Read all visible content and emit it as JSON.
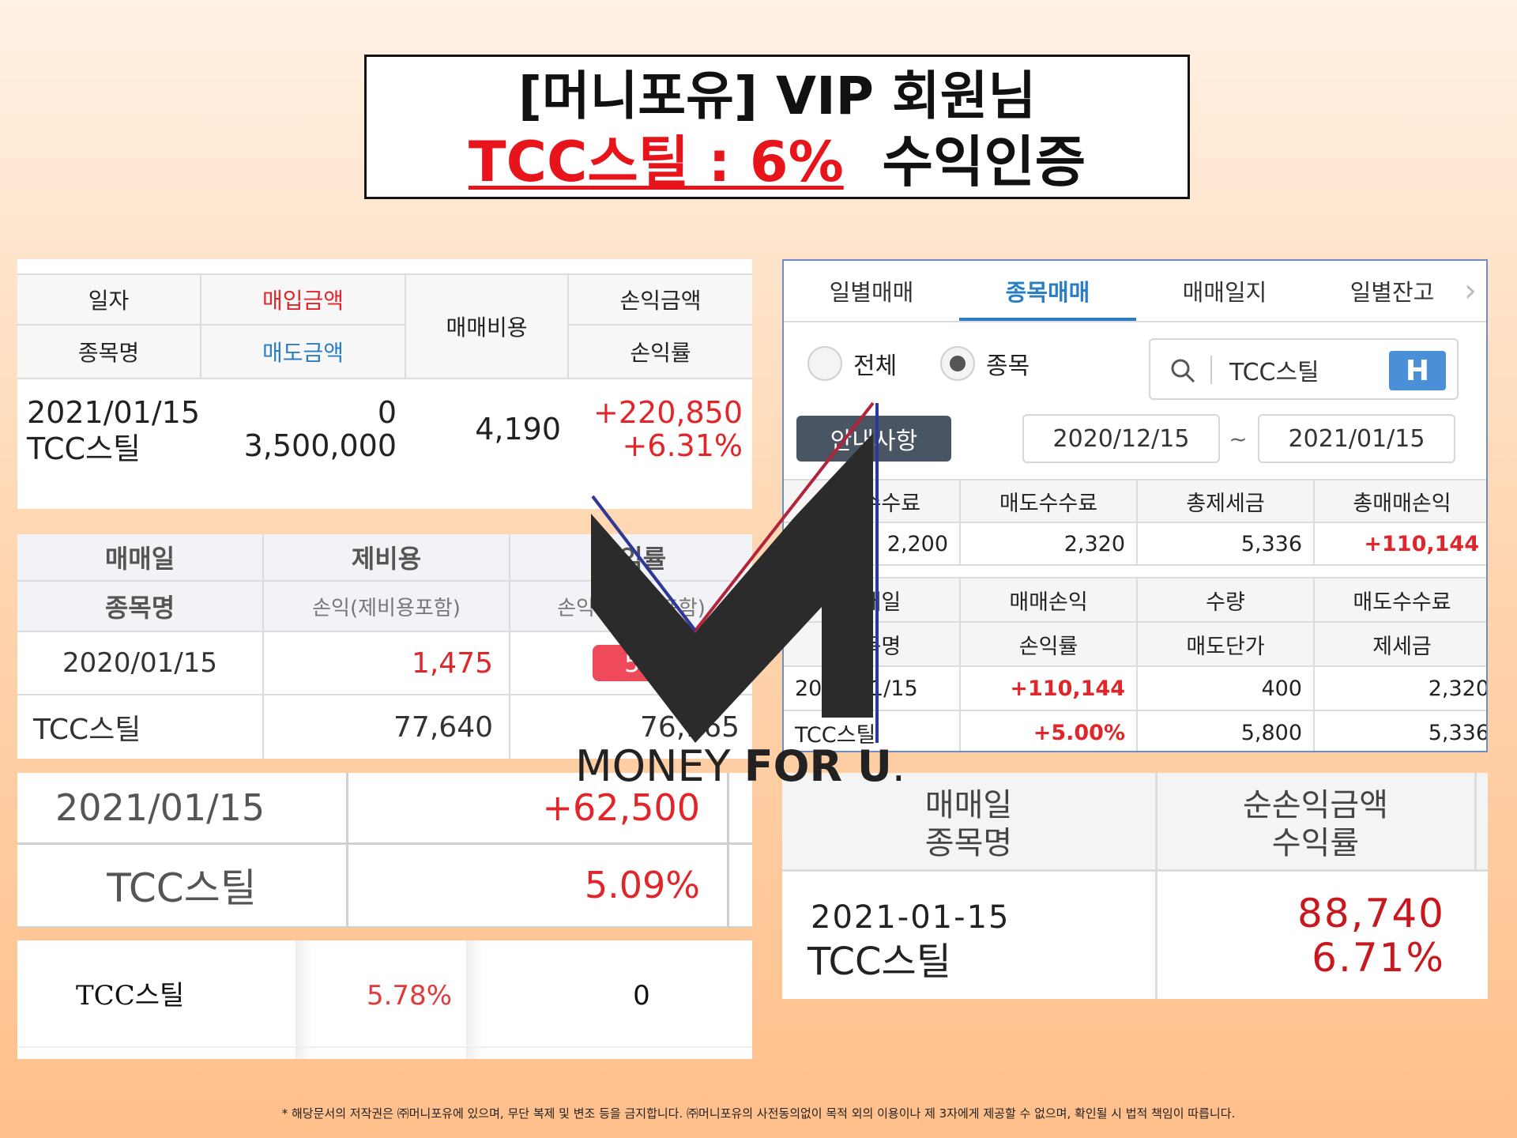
{
  "header": {
    "line1": "[머니포유] VIP 회원님",
    "line2_highlight": "TCC스틸 : 6%",
    "line2_rest": "수익인증"
  },
  "p1": {
    "h_date": "일자",
    "h_buy": "매입금액",
    "h_fee": "매매비용",
    "h_pl": "손익금액",
    "h_name": "종목명",
    "h_sell": "매도금액",
    "h_rate": "손익률",
    "row_date": "2021/01/15",
    "row_name": "TCC스틸",
    "row_buy": "0",
    "row_sell": "3,500,000",
    "row_fee": "4,190",
    "row_pl": "+220,850",
    "row_rate": "+6.31%"
  },
  "p2": {
    "h_date": "매매일",
    "h_fee": "제비용",
    "h_rate": "수익률",
    "h_name": "종목명",
    "h_pl": "손익(제비용포함)",
    "h_pl2": "손익(제비용포함)",
    "row_date": "2020/01/15",
    "row_fee": "1,475",
    "row_badge": "5.00%",
    "row_name": "TCC스틸",
    "row_pl": "77,640",
    "row_pl2": "76,165"
  },
  "p3": {
    "row_date": "2021/01/15",
    "row_pl": "+62,500",
    "row_name": "TCC스틸",
    "row_rate": "5.09%"
  },
  "p4": {
    "name": "TCC스틸",
    "rate": "5.78%",
    "value": "0"
  },
  "p5": {
    "tabs": [
      "일별매매",
      "종목매매",
      "매매일지",
      "일별잔고"
    ],
    "active_tab": 1,
    "radio_all": "전체",
    "radio_stock": "종목",
    "search_value": "TCC스틸",
    "search_badge": "H",
    "notice_button": "안내사항",
    "date_from": "2020/12/15",
    "date_sep": "~",
    "date_to": "2021/01/15",
    "sum_headers": [
      "매수수수료",
      "매도수수료",
      "총제세금",
      "총매매손익"
    ],
    "sum_values": [
      "2,200",
      "2,320",
      "5,336",
      "+110,144"
    ],
    "d_head1": [
      "매매일",
      "매매손익",
      "수량",
      "매도수수료"
    ],
    "d_head2": [
      "종목명",
      "손익률",
      "매도단가",
      "제세금"
    ],
    "d_row1": [
      "2021/01/15",
      "+110,144",
      "400",
      "2,320"
    ],
    "d_row2": [
      "TCC스틸",
      "+5.00%",
      "5,800",
      "5,336"
    ]
  },
  "p6": {
    "h_date": "매매일",
    "h_name": "종목명",
    "h_pl": "순손익금액",
    "h_rate": "수익률",
    "row_date": "2021-01-15",
    "row_name": "TCC스틸",
    "row_pl": "88,740",
    "row_rate": "6.71%"
  },
  "logo": {
    "text_light": "MONEY ",
    "text_bold": "FOR U",
    "text_dot": "."
  },
  "footer": "* 해당문서의 저작권은 ㈜머니포유에 있으며, 무단 복제 및 변조 등을 금지합니다. ㈜머니포유의 사전동의없이 목적 외의 이용이나 제 3자에게 제공할 수 없으며, 확인될 시 법적 책임이 따릅니다.",
  "colors": {
    "profit_red": "#e0262a",
    "accent_blue": "#2a7fc4",
    "title_red": "#e8141c"
  }
}
